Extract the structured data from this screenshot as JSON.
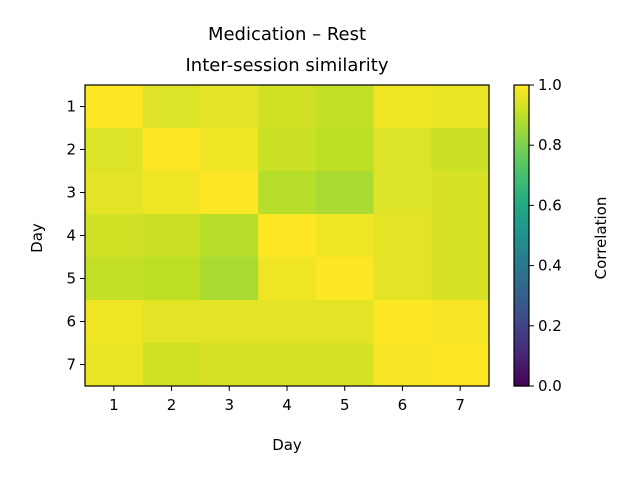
{
  "chart_data": {
    "type": "heatmap",
    "title": "Medication – Rest",
    "subtitle": "Inter-session similarity",
    "xlabel": "Day",
    "ylabel": "Day",
    "x_categories": [
      "1",
      "2",
      "3",
      "4",
      "5",
      "6",
      "7"
    ],
    "y_categories": [
      "1",
      "2",
      "3",
      "4",
      "5",
      "6",
      "7"
    ],
    "colorscale": "viridis",
    "vmin": 0.0,
    "vmax": 1.0,
    "colorbar": {
      "label": "Correlation",
      "ticks": [
        0.0,
        0.2,
        0.4,
        0.6,
        0.8,
        1.0
      ],
      "tick_labels": [
        "0.0",
        "0.2",
        "0.4",
        "0.6",
        "0.8",
        "1.0"
      ]
    },
    "values": [
      [
        1.0,
        0.95,
        0.96,
        0.93,
        0.91,
        0.98,
        0.97
      ],
      [
        0.95,
        1.0,
        0.98,
        0.92,
        0.9,
        0.95,
        0.92
      ],
      [
        0.96,
        0.98,
        1.0,
        0.89,
        0.87,
        0.95,
        0.94
      ],
      [
        0.93,
        0.92,
        0.89,
        1.0,
        0.98,
        0.96,
        0.94
      ],
      [
        0.91,
        0.9,
        0.87,
        0.98,
        1.0,
        0.96,
        0.94
      ],
      [
        0.98,
        0.96,
        0.96,
        0.96,
        0.96,
        1.0,
        0.99
      ],
      [
        0.97,
        0.93,
        0.94,
        0.94,
        0.94,
        0.99,
        1.0
      ]
    ]
  }
}
